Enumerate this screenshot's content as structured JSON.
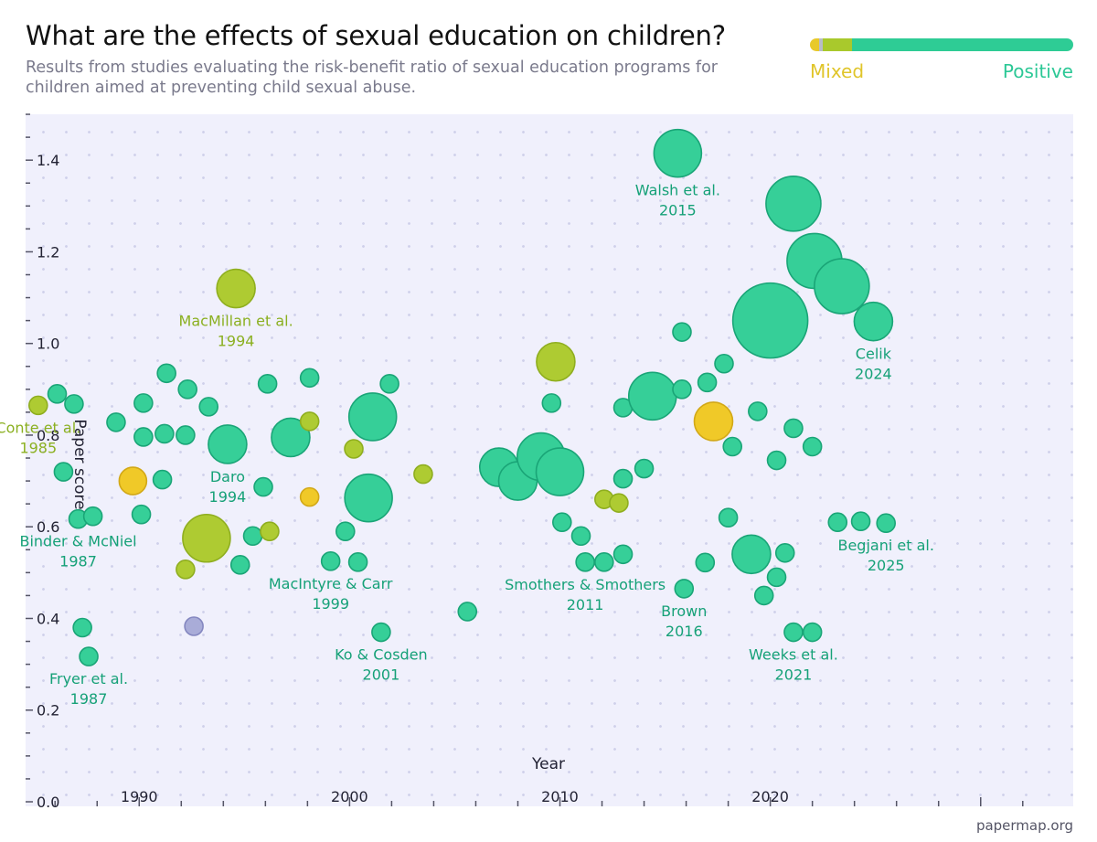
{
  "header": {
    "title": "What are the effects of sexual education on children?",
    "subtitle": "Results from studies evaluating the risk-benefit ratio of sexual education programs for children aimed at preventing child sexual abuse."
  },
  "legend": {
    "mixed_label": "Mixed",
    "positive_label": "Positive",
    "segments": [
      {
        "color": "#e8c92a",
        "fraction": 0.035
      },
      {
        "color": "#b8bcc8",
        "fraction": 0.015
      },
      {
        "color": "#a9c92c",
        "fraction": 0.11
      },
      {
        "color": "#2ecc95",
        "fraction": 0.84
      }
    ]
  },
  "footer": {
    "source": "papermap.org"
  },
  "colors": {
    "positive": "#36cf98",
    "positive_stroke": "#1aa577",
    "mixed_green": "#aecb32",
    "mixed_green_stroke": "#8fae1f",
    "mixed": "#f0c928",
    "mixed_stroke": "#d2a817",
    "neutral": "#a9acd8",
    "neutral_stroke": "#8487c0",
    "label_positive": "#16a178",
    "label_mixed_green": "#8bb021"
  },
  "chart_data": {
    "type": "scatter",
    "xlabel": "Year",
    "ylabel": "Paper score",
    "xlim": [
      1984.6,
      2034.4
    ],
    "ylim": [
      0,
      1.5
    ],
    "y_ticks": [
      "0.0",
      "0.2",
      "0.4",
      "0.6",
      "0.8",
      "1.0",
      "1.2",
      "1.4"
    ],
    "x_ticks": [
      "1990",
      "2000",
      "2010",
      "2020"
    ],
    "grid": true,
    "points": [
      {
        "x": 1985.2,
        "y": 0.865,
        "size": 1,
        "cat": "mixed_green",
        "label": [
          "Conte et al.",
          "1985"
        ]
      },
      {
        "x": 1986.1,
        "y": 0.89,
        "size": 1,
        "cat": "positive"
      },
      {
        "x": 1986.4,
        "y": 0.72,
        "size": 1,
        "cat": "positive"
      },
      {
        "x": 1986.9,
        "y": 0.868,
        "size": 1,
        "cat": "positive"
      },
      {
        "x": 1987.1,
        "y": 0.617,
        "size": 1,
        "cat": "positive",
        "label": [
          "Binder & McNiel",
          "1987"
        ]
      },
      {
        "x": 1987.8,
        "y": 0.623,
        "size": 1,
        "cat": "positive"
      },
      {
        "x": 1987.3,
        "y": 0.38,
        "size": 1,
        "cat": "positive"
      },
      {
        "x": 1987.6,
        "y": 0.317,
        "size": 1,
        "cat": "positive",
        "label": [
          "Fryer et al.",
          "1987"
        ]
      },
      {
        "x": 1988.9,
        "y": 0.828,
        "size": 1,
        "cat": "positive"
      },
      {
        "x": 1989.7,
        "y": 0.7,
        "size": 2,
        "cat": "mixed"
      },
      {
        "x": 1990.2,
        "y": 0.87,
        "size": 1,
        "cat": "positive"
      },
      {
        "x": 1990.2,
        "y": 0.796,
        "size": 1,
        "cat": "positive"
      },
      {
        "x": 1990.1,
        "y": 0.627,
        "size": 1,
        "cat": "positive"
      },
      {
        "x": 1991.1,
        "y": 0.703,
        "size": 1,
        "cat": "positive"
      },
      {
        "x": 1991.2,
        "y": 0.803,
        "size": 1,
        "cat": "positive"
      },
      {
        "x": 1991.3,
        "y": 0.935,
        "size": 1,
        "cat": "positive"
      },
      {
        "x": 1992.2,
        "y": 0.8,
        "size": 1,
        "cat": "positive"
      },
      {
        "x": 1992.3,
        "y": 0.9,
        "size": 1,
        "cat": "positive"
      },
      {
        "x": 1992.2,
        "y": 0.507,
        "size": 1,
        "cat": "mixed_green"
      },
      {
        "x": 1992.6,
        "y": 0.383,
        "size": 1,
        "cat": "neutral"
      },
      {
        "x": 1993.2,
        "y": 0.575,
        "size": 4,
        "cat": "mixed_green"
      },
      {
        "x": 1993.3,
        "y": 0.862,
        "size": 1,
        "cat": "positive"
      },
      {
        "x": 1994.2,
        "y": 0.78,
        "size": 3,
        "cat": "positive",
        "label": [
          "Daro",
          "1994"
        ]
      },
      {
        "x": 1994.6,
        "y": 1.12,
        "size": 3,
        "cat": "mixed_green",
        "label": [
          "MacMillan et al.",
          "1994"
        ]
      },
      {
        "x": 1994.8,
        "y": 0.517,
        "size": 1,
        "cat": "positive"
      },
      {
        "x": 1995.4,
        "y": 0.58,
        "size": 1,
        "cat": "positive"
      },
      {
        "x": 1995.9,
        "y": 0.687,
        "size": 1,
        "cat": "positive"
      },
      {
        "x": 1996.1,
        "y": 0.912,
        "size": 1,
        "cat": "positive"
      },
      {
        "x": 1996.2,
        "y": 0.59,
        "size": 1,
        "cat": "mixed_green"
      },
      {
        "x": 1997.2,
        "y": 0.795,
        "size": 3,
        "cat": "positive"
      },
      {
        "x": 1998.1,
        "y": 0.925,
        "size": 1,
        "cat": "positive"
      },
      {
        "x": 1998.1,
        "y": 0.83,
        "size": 1,
        "cat": "mixed_green"
      },
      {
        "x": 1998.1,
        "y": 0.665,
        "size": 1,
        "cat": "mixed"
      },
      {
        "x": 1999.1,
        "y": 0.525,
        "size": 1,
        "cat": "positive",
        "label": [
          "MacIntyre & Carr",
          "1999"
        ]
      },
      {
        "x": 1999.8,
        "y": 0.59,
        "size": 1,
        "cat": "positive"
      },
      {
        "x": 2000.2,
        "y": 0.77,
        "size": 1,
        "cat": "mixed_green"
      },
      {
        "x": 2000.4,
        "y": 0.523,
        "size": 1,
        "cat": "positive"
      },
      {
        "x": 2000.9,
        "y": 0.663,
        "size": 4,
        "cat": "positive"
      },
      {
        "x": 2001.1,
        "y": 0.84,
        "size": 4,
        "cat": "positive"
      },
      {
        "x": 2001.5,
        "y": 0.37,
        "size": 1,
        "cat": "positive",
        "label": [
          "Ko & Cosden",
          "2001"
        ]
      },
      {
        "x": 2001.9,
        "y": 0.912,
        "size": 1,
        "cat": "positive"
      },
      {
        "x": 2003.5,
        "y": 0.715,
        "size": 1,
        "cat": "mixed_green"
      },
      {
        "x": 2005.6,
        "y": 0.415,
        "size": 1,
        "cat": "positive"
      },
      {
        "x": 2007.1,
        "y": 0.73,
        "size": 3,
        "cat": "positive"
      },
      {
        "x": 2008.0,
        "y": 0.7,
        "size": 3,
        "cat": "positive"
      },
      {
        "x": 2009.1,
        "y": 0.753,
        "size": 4,
        "cat": "positive"
      },
      {
        "x": 2009.6,
        "y": 0.87,
        "size": 1,
        "cat": "positive"
      },
      {
        "x": 2009.8,
        "y": 0.96,
        "size": 3,
        "cat": "mixed_green"
      },
      {
        "x": 2010.0,
        "y": 0.72,
        "size": 4,
        "cat": "positive"
      },
      {
        "x": 2010.1,
        "y": 0.61,
        "size": 1,
        "cat": "positive"
      },
      {
        "x": 2011.0,
        "y": 0.58,
        "size": 1,
        "cat": "positive"
      },
      {
        "x": 2011.2,
        "y": 0.523,
        "size": 1,
        "cat": "positive",
        "label": [
          "Smothers & Smothers",
          "2011"
        ]
      },
      {
        "x": 2012.1,
        "y": 0.66,
        "size": 1,
        "cat": "mixed_green"
      },
      {
        "x": 2012.1,
        "y": 0.523,
        "size": 1,
        "cat": "positive"
      },
      {
        "x": 2012.8,
        "y": 0.652,
        "size": 1,
        "cat": "mixed_green"
      },
      {
        "x": 2013.0,
        "y": 0.86,
        "size": 1,
        "cat": "positive"
      },
      {
        "x": 2013.0,
        "y": 0.705,
        "size": 1,
        "cat": "positive"
      },
      {
        "x": 2013.0,
        "y": 0.54,
        "size": 1,
        "cat": "positive"
      },
      {
        "x": 2014.0,
        "y": 0.727,
        "size": 1,
        "cat": "positive"
      },
      {
        "x": 2014.4,
        "y": 0.885,
        "size": 4,
        "cat": "positive"
      },
      {
        "x": 2015.6,
        "y": 1.415,
        "size": 4,
        "cat": "positive",
        "label": [
          "Walsh et al.",
          "2015"
        ]
      },
      {
        "x": 2015.8,
        "y": 1.025,
        "size": 1,
        "cat": "positive"
      },
      {
        "x": 2015.8,
        "y": 0.9,
        "size": 1,
        "cat": "positive"
      },
      {
        "x": 2015.9,
        "y": 0.465,
        "size": 1,
        "cat": "positive",
        "label": [
          "Brown",
          "2016"
        ]
      },
      {
        "x": 2016.9,
        "y": 0.522,
        "size": 1,
        "cat": "positive"
      },
      {
        "x": 2017.0,
        "y": 0.915,
        "size": 1,
        "cat": "positive"
      },
      {
        "x": 2017.3,
        "y": 0.83,
        "size": 3,
        "cat": "mixed"
      },
      {
        "x": 2017.8,
        "y": 0.956,
        "size": 1,
        "cat": "positive"
      },
      {
        "x": 2018.0,
        "y": 0.62,
        "size": 1,
        "cat": "positive"
      },
      {
        "x": 2018.2,
        "y": 0.775,
        "size": 1,
        "cat": "positive"
      },
      {
        "x": 2019.1,
        "y": 0.54,
        "size": 3,
        "cat": "positive"
      },
      {
        "x": 2019.4,
        "y": 0.852,
        "size": 1,
        "cat": "positive"
      },
      {
        "x": 2019.7,
        "y": 0.45,
        "size": 1,
        "cat": "positive"
      },
      {
        "x": 2020.0,
        "y": 1.05,
        "size": 7,
        "cat": "positive"
      },
      {
        "x": 2020.3,
        "y": 0.745,
        "size": 1,
        "cat": "positive"
      },
      {
        "x": 2020.3,
        "y": 0.49,
        "size": 1,
        "cat": "positive"
      },
      {
        "x": 2020.7,
        "y": 0.543,
        "size": 1,
        "cat": "positive"
      },
      {
        "x": 2021.1,
        "y": 0.815,
        "size": 1,
        "cat": "positive"
      },
      {
        "x": 2021.1,
        "y": 0.37,
        "size": 1,
        "cat": "positive",
        "label": [
          "Weeks et al.",
          "2021"
        ]
      },
      {
        "x": 2021.1,
        "y": 1.305,
        "size": 5,
        "cat": "positive"
      },
      {
        "x": 2022.0,
        "y": 0.775,
        "size": 1,
        "cat": "positive"
      },
      {
        "x": 2022.0,
        "y": 0.37,
        "size": 1,
        "cat": "positive"
      },
      {
        "x": 2022.1,
        "y": 1.18,
        "size": 5,
        "cat": "positive"
      },
      {
        "x": 2023.2,
        "y": 0.61,
        "size": 1,
        "cat": "positive"
      },
      {
        "x": 2023.4,
        "y": 1.125,
        "size": 5,
        "cat": "positive"
      },
      {
        "x": 2024.3,
        "y": 0.612,
        "size": 1,
        "cat": "positive"
      },
      {
        "x": 2024.9,
        "y": 1.048,
        "size": 3,
        "cat": "positive",
        "label": [
          "Celik",
          "2024"
        ]
      },
      {
        "x": 2025.5,
        "y": 0.608,
        "size": 1,
        "cat": "positive",
        "label": [
          "Begjani et al.",
          "2025"
        ]
      }
    ]
  }
}
